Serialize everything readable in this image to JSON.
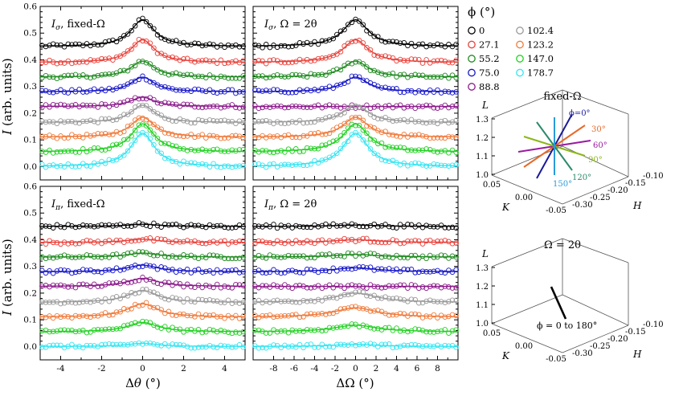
{
  "chart_data": {
    "type": "line",
    "ylim": [
      -0.05,
      0.6
    ],
    "y_ticks": [
      "0.0",
      "0.1",
      "0.2",
      "0.3",
      "0.4",
      "0.5",
      "0.6"
    ],
    "x_ticks_dtheta": [
      "-4",
      "-2",
      "0",
      "2",
      "4"
    ],
    "x_ticks_domega": [
      "-8",
      "-6",
      "-4",
      "-2",
      "0",
      "2",
      "4",
      "6",
      "8"
    ],
    "xlabel_left": "Δθ (°)",
    "xlabel_right": "ΔΩ (°)",
    "ylabel": "I (arb. units)",
    "panels": [
      {
        "label": "I_σ, fixed-Ω",
        "sub": "σ",
        "suffix": ", fixed-Ω",
        "x_range": [
          -5,
          5
        ],
        "width": 0.7,
        "peaks": [
          0.1,
          0.085,
          0.06,
          0.055,
          0.035,
          0.065,
          0.075,
          0.105,
          0.125
        ]
      },
      {
        "label": "I_σ, Ω = 2θ",
        "sub": "σ",
        "suffix": ",  Ω = 2θ",
        "x_range": [
          -10,
          10
        ],
        "width": 1.5,
        "peaks": [
          0.1,
          0.085,
          0.06,
          0.055,
          0.0,
          0.065,
          0.075,
          0.105,
          0.125
        ]
      },
      {
        "label": "I_π, fixed-Ω",
        "sub": "π",
        "suffix": ", fixed-Ω",
        "x_range": [
          -5,
          5
        ],
        "width": 0.9,
        "peaks": [
          0.008,
          0.012,
          0.015,
          0.025,
          0.03,
          0.045,
          0.05,
          0.035,
          0.012
        ]
      },
      {
        "label": "I_π, Ω = 2θ",
        "sub": "π",
        "suffix": ",  Ω = 2θ",
        "x_range": [
          -10,
          10
        ],
        "width": 2.5,
        "peaks": [
          0.005,
          0.01,
          0.01,
          0.015,
          0.0,
          0.035,
          0.035,
          0.025,
          0.008
        ]
      }
    ],
    "series": [
      {
        "name": "0",
        "offset": 0.45,
        "color": "#000000"
      },
      {
        "name": "27.1",
        "offset": 0.39,
        "color": "#e8413a"
      },
      {
        "name": "55.2",
        "offset": 0.335,
        "color": "#1f8a1f"
      },
      {
        "name": "75.0",
        "offset": 0.28,
        "color": "#1515c8"
      },
      {
        "name": "88.8",
        "offset": 0.225,
        "color": "#8b1a8b"
      },
      {
        "name": "102.4",
        "offset": 0.165,
        "color": "#9a9a9a"
      },
      {
        "name": "123.2",
        "offset": 0.11,
        "color": "#f07a3a"
      },
      {
        "name": "147.0",
        "offset": 0.055,
        "color": "#22d022"
      },
      {
        "name": "178.7",
        "offset": 0.0,
        "color": "#33e5f2"
      }
    ],
    "legend_title": "ϕ (°)",
    "legend_placement": "top-right"
  },
  "inset_fixed": {
    "title": "fixed-Ω",
    "L_label": "L",
    "K_label": "K",
    "H_label": "H",
    "L_ticks": [
      "1.3",
      "1.2",
      "1.1",
      "1.0"
    ],
    "K_ticks": [
      "0.05",
      "0.00",
      "-0.05"
    ],
    "H_ticks": [
      "-0.30",
      "-0.25",
      "-0.20",
      "-0.15",
      "-0.10"
    ],
    "phi_labels": [
      {
        "text": "ϕ=0°",
        "color": "#1a1a9a"
      },
      {
        "text": "30°",
        "color": "#e86a2a"
      },
      {
        "text": "60°",
        "color": "#9a1aa0"
      },
      {
        "text": "90°",
        "color": "#8ab81a"
      },
      {
        "text": "120°",
        "color": "#2a8a6a"
      },
      {
        "text": "150°",
        "color": "#2a9ad8"
      }
    ]
  },
  "inset_omega": {
    "title": "Ω = 2θ",
    "annotation": "ϕ = 0 to 180°",
    "L_label": "L",
    "K_label": "K",
    "H_label": "H",
    "L_ticks": [
      "1.3",
      "1.2",
      "1.1",
      "1.0"
    ],
    "K_ticks": [
      "0.05",
      "0.00",
      "-0.05"
    ],
    "H_ticks": [
      "-0.30",
      "-0.25",
      "-0.20",
      "-0.15",
      "-0.10"
    ]
  }
}
